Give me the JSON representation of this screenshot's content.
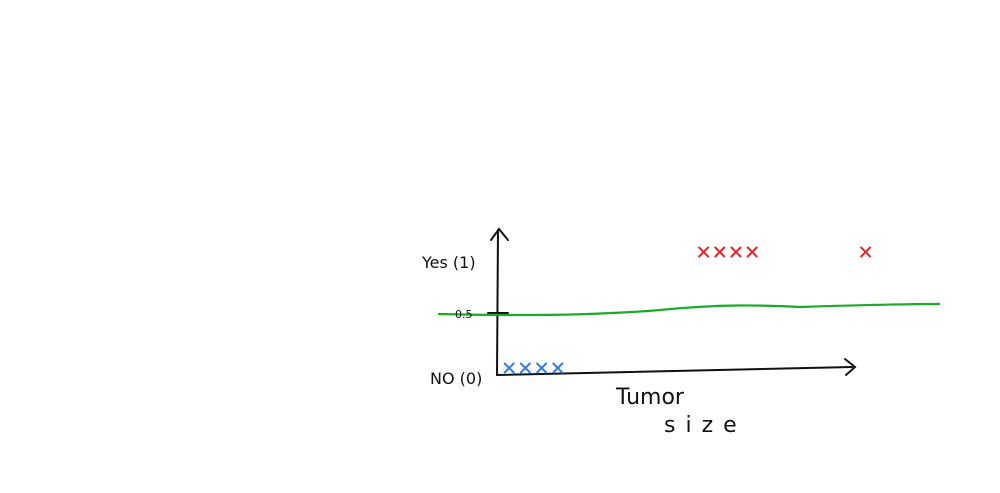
{
  "chart_data": {
    "type": "scatter",
    "title": "",
    "xlabel_line1": "Tumor",
    "xlabel_line2": "size",
    "ylabel": "",
    "y_tick_labels": [
      {
        "value": 1,
        "text": "Yes (1)"
      },
      {
        "value": 0.5,
        "text": "0.5"
      },
      {
        "value": 0,
        "text": "NO (0)"
      }
    ],
    "threshold": {
      "value": 0.5
    },
    "series": [
      {
        "color": "#3a7bd5",
        "x": [
          1,
          2,
          3,
          4
        ],
        "y": [
          0,
          0,
          0,
          0
        ]
      },
      {
        "color": "#e0262b",
        "x": [
          13,
          14,
          15,
          16,
          23
        ],
        "y": [
          1,
          1,
          1,
          1,
          1
        ]
      }
    ],
    "colors": {
      "axis": "#111111",
      "threshold_line": "#1aab2a"
    },
    "grid": false
  }
}
